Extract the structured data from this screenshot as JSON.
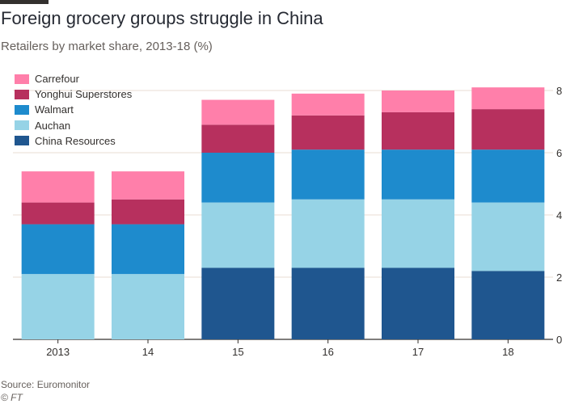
{
  "title": "Foreign grocery groups struggle in China",
  "subtitle": "Retailers by market share, 2013-18 (%)",
  "source": "Source: Euromonitor",
  "credit": "© FT",
  "colors": {
    "carrefour": "#ff7faa",
    "yonghui": "#b7305e",
    "walmart": "#1e8bcd",
    "auchan": "#96d3e6",
    "china_resources": "#1f568f",
    "gridline": "#e8ddd3",
    "axis": "#33302e"
  },
  "chart_data": {
    "type": "bar",
    "stacked": true,
    "categories": [
      "2013",
      "14",
      "15",
      "16",
      "17",
      "18"
    ],
    "series": [
      {
        "name": "China Resources",
        "color_key": "china_resources",
        "values": [
          0,
          0,
          2.3,
          2.3,
          2.3,
          2.2
        ]
      },
      {
        "name": "Auchan",
        "color_key": "auchan",
        "values": [
          2.1,
          2.1,
          2.1,
          2.2,
          2.2,
          2.2
        ]
      },
      {
        "name": "Walmart",
        "color_key": "walmart",
        "values": [
          1.6,
          1.6,
          1.6,
          1.6,
          1.6,
          1.7
        ]
      },
      {
        "name": "Yonghui Superstores",
        "color_key": "yonghui",
        "values": [
          0.7,
          0.8,
          0.9,
          1.1,
          1.2,
          1.3
        ]
      },
      {
        "name": "Carrefour",
        "color_key": "carrefour",
        "values": [
          1.0,
          0.9,
          0.8,
          0.7,
          0.7,
          0.7
        ]
      }
    ],
    "legend_order": [
      "Carrefour",
      "Yonghui Superstores",
      "Walmart",
      "Auchan",
      "China Resources"
    ],
    "ylim": [
      0,
      8
    ],
    "yticks": [
      0,
      2,
      4,
      6,
      8
    ],
    "y_axis_side": "right",
    "grid": true,
    "legend_position": "top-left",
    "xlabel": "",
    "ylabel": ""
  }
}
